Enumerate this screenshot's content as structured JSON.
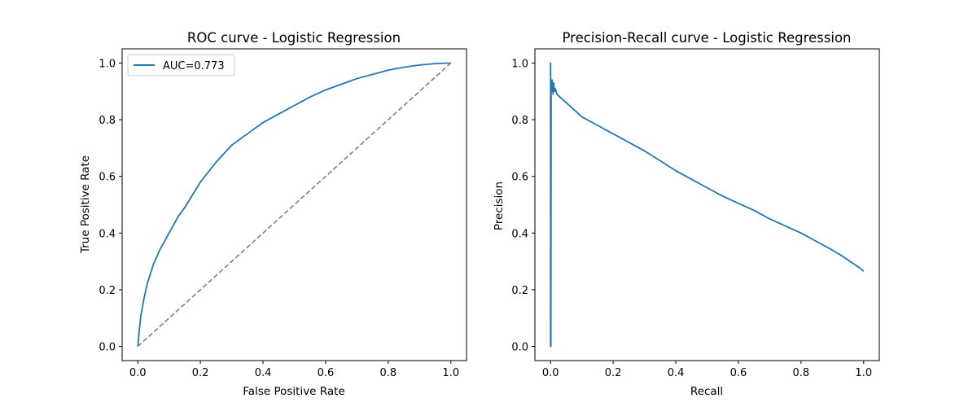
{
  "chart_data": [
    {
      "type": "line",
      "title": "ROC curve - Logistic Regression",
      "xlabel": "False Positive Rate",
      "ylabel": "True Positive Rate",
      "xlim": [
        -0.05,
        1.05
      ],
      "ylim": [
        -0.05,
        1.05
      ],
      "xticks": [
        0.0,
        0.2,
        0.4,
        0.6,
        0.8,
        1.0
      ],
      "yticks": [
        0.0,
        0.2,
        0.4,
        0.6,
        0.8,
        1.0
      ],
      "xtick_labels": [
        "0.0",
        "0.2",
        "0.4",
        "0.6",
        "0.8",
        "1.0"
      ],
      "ytick_labels": [
        "0.0",
        "0.2",
        "0.4",
        "0.6",
        "0.8",
        "1.0"
      ],
      "grid": false,
      "legend": "upper left",
      "series": [
        {
          "name": "AUC=0.773",
          "color": "#1f77b4",
          "style": "solid",
          "x": [
            0.0,
            0.005,
            0.01,
            0.02,
            0.03,
            0.05,
            0.07,
            0.1,
            0.13,
            0.15,
            0.2,
            0.25,
            0.3,
            0.35,
            0.4,
            0.45,
            0.5,
            0.55,
            0.6,
            0.65,
            0.7,
            0.75,
            0.8,
            0.85,
            0.9,
            0.95,
            1.0
          ],
          "y": [
            0.0,
            0.06,
            0.11,
            0.17,
            0.22,
            0.29,
            0.34,
            0.4,
            0.46,
            0.49,
            0.58,
            0.65,
            0.71,
            0.75,
            0.79,
            0.82,
            0.85,
            0.88,
            0.905,
            0.925,
            0.945,
            0.96,
            0.975,
            0.985,
            0.993,
            0.998,
            1.0
          ]
        },
        {
          "color": "#808080",
          "style": "dashed",
          "x": [
            0.0,
            1.0
          ],
          "y": [
            0.0,
            1.0
          ]
        }
      ]
    },
    {
      "type": "line",
      "title": "Precision-Recall curve - Logistic Regression",
      "xlabel": "Recall",
      "ylabel": "Precision",
      "xlim": [
        -0.05,
        1.05
      ],
      "ylim": [
        -0.05,
        1.05
      ],
      "xticks": [
        0.0,
        0.2,
        0.4,
        0.6,
        0.8,
        1.0
      ],
      "yticks": [
        0.0,
        0.2,
        0.4,
        0.6,
        0.8,
        1.0
      ],
      "xtick_labels": [
        "0.0",
        "0.2",
        "0.4",
        "0.6",
        "0.8",
        "1.0"
      ],
      "ytick_labels": [
        "0.0",
        "0.2",
        "0.4",
        "0.6",
        "0.8",
        "1.0"
      ],
      "grid": false,
      "series": [
        {
          "color": "#1f77b4",
          "style": "solid",
          "x": [
            0.0,
            0.0,
            0.001,
            0.001,
            0.002,
            0.003,
            0.004,
            0.005,
            0.006,
            0.007,
            0.008,
            0.01,
            0.012,
            0.015,
            0.02,
            0.03,
            0.05,
            0.08,
            0.1,
            0.15,
            0.2,
            0.25,
            0.3,
            0.35,
            0.4,
            0.45,
            0.5,
            0.55,
            0.6,
            0.65,
            0.7,
            0.75,
            0.8,
            0.85,
            0.9,
            0.93,
            0.95,
            0.97,
            0.99,
            1.0
          ],
          "y": [
            0.0,
            1.0,
            0.85,
            0.0,
            0.94,
            0.93,
            0.91,
            0.94,
            0.9,
            0.92,
            0.89,
            0.93,
            0.9,
            0.91,
            0.89,
            0.88,
            0.86,
            0.83,
            0.81,
            0.78,
            0.75,
            0.72,
            0.69,
            0.655,
            0.62,
            0.59,
            0.56,
            0.53,
            0.505,
            0.48,
            0.45,
            0.425,
            0.4,
            0.37,
            0.34,
            0.32,
            0.305,
            0.29,
            0.275,
            0.265
          ]
        }
      ]
    }
  ]
}
